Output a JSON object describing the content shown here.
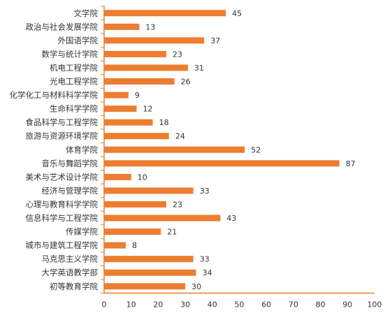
{
  "chart_data": {
    "type": "bar",
    "orientation": "horizontal",
    "categories": [
      "文学院",
      "政治与社会发展学院",
      "外国语学院",
      "数学与统计学院",
      "机电工程学院",
      "光电工程学院",
      "化学化工与材料科学学院",
      "生命科学学院",
      "食品科学与工程学院",
      "旅游与资源环境学院",
      "体育学院",
      "音乐与舞蹈学院",
      "美术与艺术设计学院",
      "经济与管理学院",
      "心理与教育科学学院",
      "信息科学与工程学院",
      "传媒学院",
      "城市与建筑工程学院",
      "马克思主义学院",
      "大学英语教学部",
      "初等教育学院"
    ],
    "values": [
      45,
      13,
      37,
      23,
      31,
      26,
      9,
      12,
      18,
      24,
      52,
      87,
      10,
      33,
      23,
      43,
      21,
      8,
      33,
      34,
      30
    ],
    "xlim": [
      0,
      100
    ],
    "xticks": [
      0,
      10,
      20,
      30,
      40,
      50,
      60,
      70,
      80,
      90,
      100
    ],
    "data_labels": true,
    "gridlines": false,
    "legend": "none",
    "title": "",
    "xlabel": "",
    "ylabel": "",
    "colors": {
      "bar": "#ED7D31",
      "axis": "#ED7D31",
      "text": "#333333"
    }
  }
}
